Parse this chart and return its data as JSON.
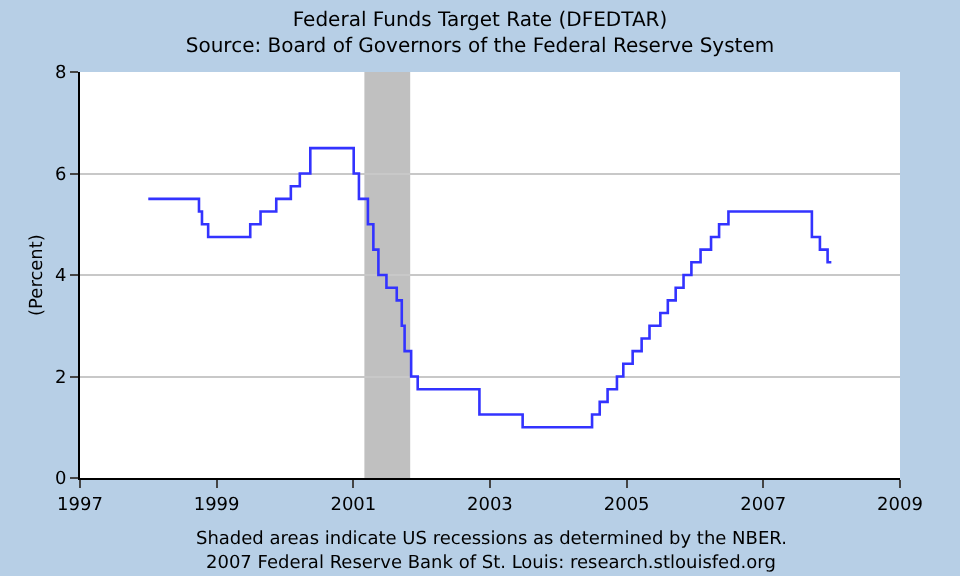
{
  "chart_data": {
    "type": "step",
    "title": "Federal Funds Target Rate (DFEDTAR)",
    "subtitle": "Source: Board of Governors of the Federal Reserve System",
    "ylabel": "(Percent)",
    "annotations": [
      "Shaded areas indicate US recessions as determined by the NBER.",
      "2007 Federal Reserve Bank of St. Louis: research.stlouisfed.org"
    ],
    "x": [
      "1998-01-01",
      "1998-09-29",
      "1998-10-15",
      "1998-11-17",
      "1999-06-30",
      "1999-08-24",
      "1999-11-16",
      "2000-02-02",
      "2000-03-21",
      "2000-05-16",
      "2001-01-03",
      "2001-01-31",
      "2001-03-20",
      "2001-04-18",
      "2001-05-15",
      "2001-06-27",
      "2001-08-21",
      "2001-09-17",
      "2001-10-02",
      "2001-11-06",
      "2001-12-11",
      "2002-11-06",
      "2003-06-25",
      "2004-06-30",
      "2004-08-10",
      "2004-09-21",
      "2004-11-10",
      "2004-12-14",
      "2005-02-02",
      "2005-03-22",
      "2005-05-03",
      "2005-06-30",
      "2005-08-09",
      "2005-09-20",
      "2005-11-01",
      "2005-12-13",
      "2006-01-31",
      "2006-03-28",
      "2006-05-10",
      "2006-06-29",
      "2007-09-18",
      "2007-10-31",
      "2007-12-11",
      "2007-12-31"
    ],
    "series": [
      {
        "color": "#3333ff",
        "values": [
          5.5,
          5.25,
          5.0,
          4.75,
          5.0,
          5.25,
          5.5,
          5.75,
          6.0,
          6.5,
          6.0,
          5.5,
          5.0,
          4.5,
          4.0,
          3.75,
          3.5,
          3.0,
          2.5,
          2.0,
          1.75,
          1.25,
          1.0,
          1.25,
          1.5,
          1.75,
          2.0,
          2.25,
          2.5,
          2.75,
          3.0,
          3.25,
          3.5,
          3.75,
          4.0,
          4.25,
          4.5,
          4.75,
          5.0,
          5.25,
          4.75,
          4.5,
          4.25,
          4.25
        ]
      }
    ],
    "xlim": [
      "1997-01-01",
      "2009-01-01"
    ],
    "xticks": [
      "1997",
      "1999",
      "2001",
      "2003",
      "2005",
      "2007",
      "2009"
    ],
    "ylim": [
      0,
      8
    ],
    "yticks": [
      0,
      2,
      4,
      6,
      8
    ],
    "grid": "y",
    "marker": "none",
    "line_style": "solid",
    "bands": [
      {
        "axis": "x",
        "from": "2001-03",
        "to": "2001-11",
        "color": "#c0c0c0"
      }
    ]
  }
}
